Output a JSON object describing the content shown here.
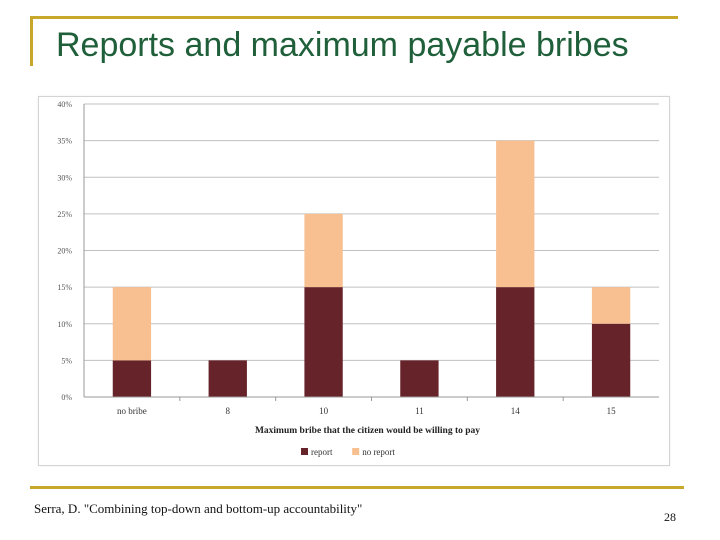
{
  "slide": {
    "title": "Reports and maximum payable bribes",
    "citation": "Serra, D. \"Combining top-down and bottom-up accountability\"",
    "page_number": "28"
  },
  "colors": {
    "accent_rule": "#c8a82a",
    "title": "#1f5f3a",
    "report": "#66232a",
    "no_report": "#f8bf91",
    "gridline": "#c0c0c0"
  },
  "chart_data": {
    "type": "bar",
    "stacked": true,
    "title": "",
    "xlabel": "Maximum bribe that the citizen would be willing to pay",
    "ylabel": "",
    "ylim": [
      0,
      40
    ],
    "ytick_values": [
      0,
      5,
      10,
      15,
      20,
      25,
      30,
      35,
      40
    ],
    "ytick_labels": [
      "0%",
      "5%",
      "10%",
      "15%",
      "20%",
      "25%",
      "30%",
      "35%",
      "40%"
    ],
    "categories": [
      "no bribe",
      "8",
      "10",
      "11",
      "14",
      "15"
    ],
    "series": [
      {
        "name": "report",
        "color": "#66232a",
        "values": [
          5,
          5,
          15,
          5,
          15,
          10
        ]
      },
      {
        "name": "no report",
        "color": "#f8bf91",
        "values": [
          10,
          0,
          10,
          0,
          20,
          5
        ]
      }
    ],
    "legend_position": "bottom",
    "grid": true
  }
}
